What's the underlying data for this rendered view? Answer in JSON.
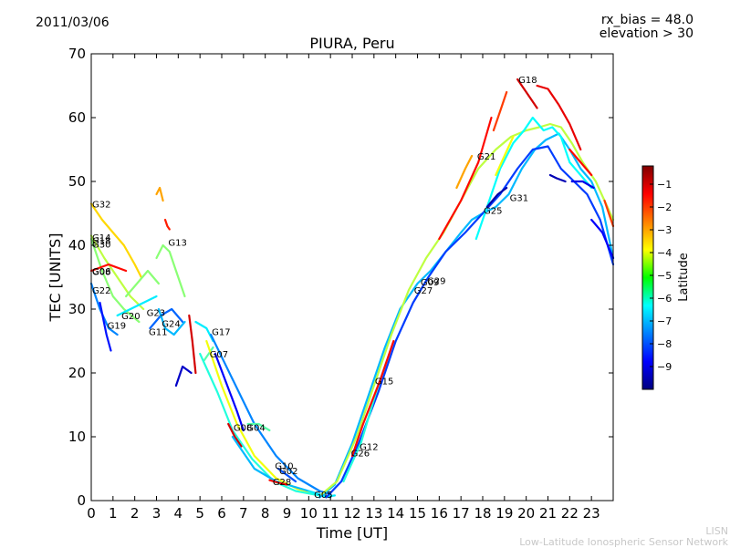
{
  "header": {
    "date": "2011/03/06",
    "rx_bias": "rx_bias = 48.0",
    "elevation": "elevation > 30"
  },
  "footer": {
    "org_short": "LISN",
    "org_full": "Low-Latitude Ionospheric Sensor Network"
  },
  "chart_data": {
    "type": "scatter",
    "title": "PIURA, Peru",
    "xlabel": "Time [UT]",
    "ylabel": "TEC [UNITS]",
    "xlim": [
      0,
      24
    ],
    "ylim": [
      0,
      70
    ],
    "xticks": [
      0,
      1,
      2,
      3,
      4,
      5,
      6,
      7,
      8,
      9,
      10,
      11,
      12,
      13,
      14,
      15,
      16,
      17,
      18,
      19,
      20,
      21,
      22,
      23
    ],
    "yticks": [
      0,
      10,
      20,
      30,
      40,
      50,
      60,
      70
    ],
    "colorbar": {
      "label": "Latitude",
      "range": [
        -10,
        -0.2
      ],
      "ticks": [
        -1,
        -2,
        -3,
        -4,
        -5,
        -6,
        -7,
        -8,
        -9
      ]
    },
    "grid": false,
    "satellite_labels": [
      {
        "name": "G32",
        "x": 0.0,
        "y": 46.5
      },
      {
        "name": "G14",
        "x": 0.0,
        "y": 41.3
      },
      {
        "name": "G18",
        "x": 0.0,
        "y": 40.8
      },
      {
        "name": "G30",
        "x": 0.0,
        "y": 40.2
      },
      {
        "name": "G06",
        "x": 0.0,
        "y": 36.0
      },
      {
        "name": "G08",
        "x": 0.0,
        "y": 35.9
      },
      {
        "name": "G22",
        "x": 0.0,
        "y": 33.0
      },
      {
        "name": "G19",
        "x": 0.7,
        "y": 27.5
      },
      {
        "name": "G20",
        "x": 1.35,
        "y": 29.0
      },
      {
        "name": "G23",
        "x": 2.5,
        "y": 29.5
      },
      {
        "name": "G11",
        "x": 2.6,
        "y": 26.5
      },
      {
        "name": "G24",
        "x": 3.2,
        "y": 27.8
      },
      {
        "name": "G13",
        "x": 3.5,
        "y": 40.5
      },
      {
        "name": "G17",
        "x": 5.5,
        "y": 26.5
      },
      {
        "name": "G07",
        "x": 5.4,
        "y": 23.0
      },
      {
        "name": "G08",
        "x": 6.5,
        "y": 11.5
      },
      {
        "name": "G04",
        "x": 7.1,
        "y": 11.5
      },
      {
        "name": "G10",
        "x": 8.4,
        "y": 5.5
      },
      {
        "name": "G02",
        "x": 8.6,
        "y": 4.7
      },
      {
        "name": "G28",
        "x": 8.3,
        "y": 3.0
      },
      {
        "name": "G05",
        "x": 10.2,
        "y": 1.0
      },
      {
        "name": "G12",
        "x": 12.3,
        "y": 8.5
      },
      {
        "name": "G26",
        "x": 11.9,
        "y": 7.5
      },
      {
        "name": "G15",
        "x": 13.0,
        "y": 18.8
      },
      {
        "name": "G27",
        "x": 14.8,
        "y": 33.0
      },
      {
        "name": "G09",
        "x": 15.1,
        "y": 34.3
      },
      {
        "name": "G29",
        "x": 15.4,
        "y": 34.5
      },
      {
        "name": "G21",
        "x": 17.7,
        "y": 54.0
      },
      {
        "name": "G25",
        "x": 18.0,
        "y": 45.5
      },
      {
        "name": "G31",
        "x": 19.2,
        "y": 47.5
      },
      {
        "name": "G18",
        "x": 19.6,
        "y": 66.0
      }
    ],
    "series": [
      {
        "lat": -3.5,
        "x": [
          0,
          0.5,
          1,
          1.5,
          2,
          2.3
        ],
        "y": [
          46.5,
          44,
          42,
          40,
          37,
          35
        ]
      },
      {
        "lat": -4.5,
        "x": [
          0,
          0.6,
          1.2,
          1.8,
          2.4
        ],
        "y": [
          41.5,
          38,
          35,
          32,
          30
        ]
      },
      {
        "lat": -5.0,
        "x": [
          0,
          0.5,
          1,
          1.5,
          2.2
        ],
        "y": [
          41,
          36,
          32,
          30,
          28
        ]
      },
      {
        "lat": -7.5,
        "x": [
          0,
          0.4,
          0.8,
          1.2
        ],
        "y": [
          34,
          30,
          27,
          26
        ]
      },
      {
        "lat": -8.6,
        "x": [
          0.4,
          0.7,
          0.9
        ],
        "y": [
          31,
          26,
          23.5
        ]
      },
      {
        "lat": -1.5,
        "x": [
          0,
          0.4,
          0.8,
          1.2,
          1.6
        ],
        "y": [
          36,
          36.5,
          37,
          36.5,
          36
        ]
      },
      {
        "lat": -6.5,
        "x": [
          1.2,
          1.8,
          2.4,
          3.0
        ],
        "y": [
          29,
          30,
          31,
          32
        ]
      },
      {
        "lat": -5.0,
        "x": [
          1.6,
          2.1,
          2.6,
          3.1
        ],
        "y": [
          32,
          34,
          36,
          34
        ]
      },
      {
        "lat": -5.0,
        "x": [
          3.0,
          3.3,
          3.6,
          3.9,
          4.3
        ],
        "y": [
          38,
          40,
          39,
          36,
          32
        ]
      },
      {
        "lat": -3.0,
        "x": [
          3.0,
          3.15,
          3.3
        ],
        "y": [
          48,
          49,
          47
        ]
      },
      {
        "lat": -1.7,
        "x": [
          3.4,
          3.5,
          3.6
        ],
        "y": [
          44,
          43,
          42.5
        ]
      },
      {
        "lat": -7.8,
        "x": [
          2.7,
          3.2,
          3.7,
          4.2
        ],
        "y": [
          27,
          29,
          30,
          28
        ]
      },
      {
        "lat": -7.0,
        "x": [
          3.1,
          3.4,
          3.8,
          4.3
        ],
        "y": [
          30,
          27,
          26,
          28
        ]
      },
      {
        "lat": -9.3,
        "x": [
          3.9,
          4.2,
          4.6
        ],
        "y": [
          18,
          21,
          20
        ]
      },
      {
        "lat": -1.0,
        "x": [
          4.5,
          4.65,
          4.8
        ],
        "y": [
          29,
          25,
          20
        ]
      },
      {
        "lat": -6.5,
        "x": [
          4.8,
          5.3,
          5.6
        ],
        "y": [
          28,
          27,
          25
        ]
      },
      {
        "lat": -5.5,
        "x": [
          5.2,
          5.6
        ],
        "y": [
          22,
          24
        ]
      },
      {
        "lat": -7.5,
        "x": [
          5.5,
          6.5,
          7.5,
          8.5,
          9.5,
          10.5,
          11
        ],
        "y": [
          26,
          19,
          12,
          7,
          3.5,
          1.5,
          1
        ]
      },
      {
        "lat": -8.8,
        "x": [
          5.7,
          6.7,
          7.0
        ],
        "y": [
          23,
          14,
          11
        ]
      },
      {
        "lat": -4.0,
        "x": [
          5.3,
          6.0,
          6.7,
          7.5,
          8.5,
          9.5,
          10.5
        ],
        "y": [
          25,
          18,
          12,
          7,
          3.5,
          1.8,
          1
        ]
      },
      {
        "lat": -6.0,
        "x": [
          5.0,
          5.8,
          6.5,
          7.4,
          8.4,
          9.4,
          10.5
        ],
        "y": [
          23,
          17,
          11,
          6.5,
          3,
          1.5,
          0.8
        ]
      },
      {
        "lat": -1.0,
        "x": [
          6.3,
          6.6,
          6.9
        ],
        "y": [
          12,
          10,
          8.5
        ]
      },
      {
        "lat": -5.5,
        "x": [
          7.2,
          7.7,
          8.2
        ],
        "y": [
          12,
          12,
          11
        ]
      },
      {
        "lat": -7.0,
        "x": [
          6.5,
          7.5,
          8.5,
          9.5,
          10.5,
          11.0
        ],
        "y": [
          10,
          5,
          3,
          2,
          1,
          0.5
        ]
      },
      {
        "lat": -1.5,
        "x": [
          8.2,
          8.6,
          9.0
        ],
        "y": [
          3.2,
          2.8,
          2.5
        ]
      },
      {
        "lat": -8.0,
        "x": [
          8.6,
          9.0,
          9.4
        ],
        "y": [
          5,
          4,
          3
        ]
      },
      {
        "lat": -6.5,
        "x": [
          10.0,
          10.4,
          10.8,
          11.2
        ],
        "y": [
          1.5,
          1,
          0.6,
          0.8
        ]
      },
      {
        "lat": -7.0,
        "x": [
          10.5,
          11.2,
          12,
          12.8,
          13.5,
          14.2,
          15,
          15.6,
          16.3,
          17,
          17.5,
          18,
          18.6,
          19.2,
          19.8,
          20.4,
          20.9,
          21.5,
          22,
          22.5,
          23,
          23.5,
          24
        ],
        "y": [
          0.5,
          2.5,
          9,
          17,
          24,
          30,
          34,
          36,
          39,
          42,
          44,
          45,
          46,
          48,
          52,
          55,
          56.5,
          57.5,
          55,
          52,
          50,
          46,
          38
        ]
      },
      {
        "lat": -4.5,
        "x": [
          10.6,
          11.3,
          12.2,
          13,
          13.8,
          14.6,
          15.4,
          16.2,
          17,
          17.8,
          18.6,
          19.3,
          20,
          20.6,
          21.1,
          21.6,
          22.1,
          22.6,
          23.2,
          24
        ],
        "y": [
          1,
          3,
          10,
          18,
          26,
          33,
          38,
          42,
          47,
          52,
          55,
          57,
          58,
          58.5,
          59,
          58.5,
          56,
          53,
          50,
          44
        ]
      },
      {
        "lat": -8.2,
        "x": [
          10.8,
          11.5,
          12.3,
          13.2,
          14,
          14.8,
          15.5,
          16.3,
          17.2,
          18,
          18.8,
          19.6,
          20.3,
          21,
          21.6,
          22.2,
          22.8,
          23.4,
          24
        ],
        "y": [
          0.5,
          3,
          9,
          17,
          25,
          31,
          35,
          39,
          42,
          45,
          48,
          52,
          55,
          55.5,
          52,
          50,
          48,
          44,
          37
        ]
      },
      {
        "lat": -6.0,
        "x": [
          11.6,
          12.4,
          13.1,
          13.6
        ],
        "y": [
          3,
          9,
          17,
          22
        ]
      },
      {
        "lat": -1.5,
        "x": [
          12.0,
          12.5,
          13.3,
          13.9
        ],
        "y": [
          7,
          12,
          19,
          25
        ]
      },
      {
        "lat": -3.0,
        "x": [
          16.8,
          17.2,
          17.5
        ],
        "y": [
          49,
          52,
          54
        ]
      },
      {
        "lat": -1.5,
        "x": [
          16.0,
          17.0,
          17.8,
          18.4
        ],
        "y": [
          41,
          47,
          53,
          60
        ]
      },
      {
        "lat": -2.0,
        "x": [
          18.5,
          18.8,
          19.1
        ],
        "y": [
          58,
          61,
          64
        ]
      },
      {
        "lat": -6.3,
        "x": [
          17.7,
          18.2,
          18.8,
          19.4,
          19.9,
          20.3,
          20.8,
          21.2,
          21.6,
          22.0,
          22.5,
          23.0
        ],
        "y": [
          41,
          46,
          52,
          56,
          58,
          60,
          58,
          58.5,
          57,
          53,
          51,
          49
        ]
      },
      {
        "lat": -4.0,
        "x": [
          18.6,
          19.0,
          19.4
        ],
        "y": [
          51,
          54,
          57
        ]
      },
      {
        "lat": -9.6,
        "x": [
          18.2,
          18.7,
          19.1
        ],
        "y": [
          46,
          48,
          49
        ]
      },
      {
        "lat": -1.0,
        "x": [
          19.6,
          20.0,
          20.5
        ],
        "y": [
          66,
          64,
          61.5
        ]
      },
      {
        "lat": -1.2,
        "x": [
          20.5,
          21.0,
          21.5,
          22.0,
          22.5
        ],
        "y": [
          65,
          64.5,
          62,
          59,
          55
        ]
      },
      {
        "lat": -9.5,
        "x": [
          21.1,
          21.4,
          21.8
        ],
        "y": [
          51,
          50.5,
          50
        ]
      },
      {
        "lat": -1.5,
        "x": [
          22.0,
          22.5,
          23.0
        ],
        "y": [
          55,
          53,
          51
        ]
      },
      {
        "lat": -9.0,
        "x": [
          22.1,
          22.6,
          23.1
        ],
        "y": [
          50,
          50,
          49
        ]
      },
      {
        "lat": -8.8,
        "x": [
          23.0,
          23.5,
          24
        ],
        "y": [
          44,
          42,
          38
        ]
      },
      {
        "lat": -2.0,
        "x": [
          23.6,
          23.8,
          24
        ],
        "y": [
          47,
          45,
          43
        ]
      }
    ]
  }
}
